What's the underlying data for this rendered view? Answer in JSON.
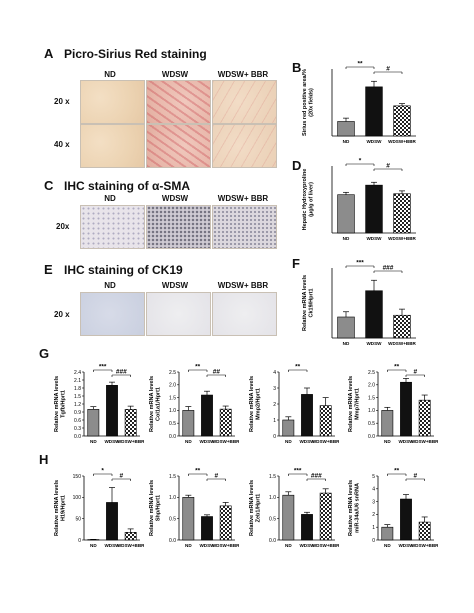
{
  "colors": {
    "nd": "#8c8c8c",
    "wdsw": "#111111",
    "bbr": "#ffffff",
    "tile_border": "#c9c0b4"
  },
  "panels": {
    "A": {
      "letter": "A",
      "title": "Picro-Sirius Red staining",
      "cols": [
        "ND",
        "WDSW",
        "WDSW+ BBR"
      ],
      "rows": [
        "20 x",
        "40 x"
      ]
    },
    "C": {
      "letter": "C",
      "title": "IHC staining of α-SMA",
      "cols": [
        "ND",
        "WDSW",
        "WDSW+ BBR"
      ],
      "rows": [
        "20x"
      ]
    },
    "E": {
      "letter": "E",
      "title": "IHC staining of CK19",
      "cols": [
        "ND",
        "WDSW",
        "WDSW+ BBR"
      ],
      "rows": [
        "20 x"
      ]
    },
    "B": {
      "letter": "B"
    },
    "D": {
      "letter": "D"
    },
    "F": {
      "letter": "F"
    },
    "G": {
      "letter": "G"
    },
    "H": {
      "letter": "H"
    }
  },
  "chart_data": [
    {
      "panel": "B",
      "type": "bar",
      "categories": [
        "ND",
        "WDSW",
        "WDSW+BBR"
      ],
      "ylabel": "Sirius  red positive area/%\n(20x fields)",
      "ylim": [
        0,
        3
      ],
      "yticks": [],
      "values": [
        0.65,
        2.2,
        1.35
      ],
      "errors": [
        0.15,
        0.25,
        0.1
      ],
      "sig": [
        {
          "from": 0,
          "to": 1,
          "label": "**"
        },
        {
          "from": 1,
          "to": 2,
          "label": "#"
        }
      ]
    },
    {
      "panel": "D",
      "type": "bar",
      "categories": [
        "ND",
        "WDSW",
        "WDSW+BBR"
      ],
      "ylabel": "Hepatic Hydroxyproline\n(μg/g of liver)",
      "ylim": [
        0,
        140
      ],
      "yticks": [],
      "values": [
        80,
        100,
        82
      ],
      "errors": [
        5,
        6,
        6
      ],
      "sig": [
        {
          "from": 0,
          "to": 1,
          "label": "*"
        },
        {
          "from": 1,
          "to": 2,
          "label": "#"
        }
      ]
    },
    {
      "panel": "F",
      "type": "bar",
      "categories": [
        "ND",
        "WDSW",
        "WDSW+BBR"
      ],
      "ylabel": "Relative mRNA levels\nCk19/Hprt1",
      "ylim": [
        0,
        4
      ],
      "yticks": [],
      "values": [
        1.2,
        2.7,
        1.3
      ],
      "errors": [
        0.3,
        0.6,
        0.35
      ],
      "sig": [
        {
          "from": 0,
          "to": 1,
          "label": "***"
        },
        {
          "from": 1,
          "to": 2,
          "label": "###"
        }
      ]
    },
    {
      "panel": "G1",
      "type": "bar",
      "categories": [
        "ND",
        "WDSW",
        "WDSW+BBR"
      ],
      "ylabel": "Relative mRNA levels\nTgfb/Hprt1",
      "ylim": [
        0,
        2.4
      ],
      "yticks": [
        "0.0",
        "0.3",
        "0.6",
        "0.9",
        "1.2",
        "1.5",
        "1.8",
        "2.1",
        "2.4"
      ],
      "values": [
        1.0,
        1.9,
        1.0
      ],
      "errors": [
        0.1,
        0.12,
        0.12
      ],
      "sig": [
        {
          "from": 0,
          "to": 1,
          "label": "***"
        },
        {
          "from": 1,
          "to": 2,
          "label": "###"
        }
      ]
    },
    {
      "panel": "G2",
      "type": "bar",
      "categories": [
        "ND",
        "WDSW",
        "WDSW+BBR"
      ],
      "ylabel": "Relative mRNA levels\nCol1a1/Hprt1",
      "ylim": [
        0,
        2.5
      ],
      "yticks": [
        "0.0",
        "0.5",
        "1.0",
        "1.5",
        "2.0",
        "2.5"
      ],
      "values": [
        1.0,
        1.6,
        1.05
      ],
      "errors": [
        0.15,
        0.15,
        0.12
      ],
      "sig": [
        {
          "from": 0,
          "to": 1,
          "label": "**"
        },
        {
          "from": 1,
          "to": 2,
          "label": "##"
        }
      ]
    },
    {
      "panel": "G3",
      "type": "bar",
      "categories": [
        "ND",
        "WDSW",
        "WDSW+BBR"
      ],
      "ylabel": "Relative mRNA levels\nMmp2/Hprt1",
      "ylim": [
        0,
        4
      ],
      "yticks": [
        "0",
        "1",
        "2",
        "3",
        "4"
      ],
      "values": [
        1.0,
        2.6,
        1.9
      ],
      "errors": [
        0.2,
        0.4,
        0.5
      ],
      "sig": [
        {
          "from": 0,
          "to": 1,
          "label": "**"
        }
      ]
    },
    {
      "panel": "G4",
      "type": "bar",
      "categories": [
        "ND",
        "WDSW",
        "WDSW+BBR"
      ],
      "ylabel": "Relative mRNA levels\nMmp7/Hprt1",
      "ylim": [
        0,
        2.5
      ],
      "yticks": [
        "0.0",
        "0.5",
        "1.0",
        "1.5",
        "2.0",
        "2.5"
      ],
      "values": [
        1.0,
        2.1,
        1.4
      ],
      "errors": [
        0.12,
        0.15,
        0.2
      ],
      "sig": [
        {
          "from": 0,
          "to": 1,
          "label": "**"
        },
        {
          "from": 1,
          "to": 2,
          "label": "#"
        }
      ]
    },
    {
      "panel": "H1",
      "type": "bar",
      "categories": [
        "ND",
        "WDSW",
        "WDSW+BBR"
      ],
      "ylabel": "Relative mRNA levels\nH19/Hprt1",
      "ylim": [
        0,
        150
      ],
      "yticks": [
        "0",
        "50",
        "100",
        "150"
      ],
      "values": [
        1,
        88,
        18
      ],
      "errors": [
        0.5,
        35,
        8
      ],
      "sig": [
        {
          "from": 0,
          "to": 1,
          "label": "*"
        },
        {
          "from": 1,
          "to": 2,
          "label": "#"
        }
      ]
    },
    {
      "panel": "H2",
      "type": "bar",
      "categories": [
        "ND",
        "WDSW",
        "WDSW+BBR"
      ],
      "ylabel": "Relative mRNA levels\nShp/Hprt1",
      "ylim": [
        0,
        1.5
      ],
      "yticks": [
        "0.0",
        "0.5",
        "1.0",
        "1.5"
      ],
      "values": [
        1.0,
        0.55,
        0.8
      ],
      "errors": [
        0.05,
        0.04,
        0.08
      ],
      "sig": [
        {
          "from": 0,
          "to": 1,
          "label": "**"
        },
        {
          "from": 1,
          "to": 2,
          "label": "#"
        }
      ]
    },
    {
      "panel": "H3",
      "type": "bar",
      "categories": [
        "ND",
        "WDSW",
        "WDSW+BBR"
      ],
      "ylabel": "Relative mRNA levels\nZeb1/Hprt1",
      "ylim": [
        0,
        1.5
      ],
      "yticks": [
        "0.0",
        "0.5",
        "1.0",
        "1.5"
      ],
      "values": [
        1.05,
        0.6,
        1.1
      ],
      "errors": [
        0.08,
        0.05,
        0.1
      ],
      "sig": [
        {
          "from": 0,
          "to": 1,
          "label": "***"
        },
        {
          "from": 1,
          "to": 2,
          "label": "###"
        }
      ]
    },
    {
      "panel": "H4",
      "type": "bar",
      "categories": [
        "ND",
        "WDSW",
        "WDSW+BBR"
      ],
      "ylabel": "Relative mRNA levels\nmiR-34a/U6 snRNA",
      "ylim": [
        0,
        5
      ],
      "yticks": [
        "0",
        "1",
        "2",
        "3",
        "4",
        "5"
      ],
      "values": [
        1.0,
        3.2,
        1.4
      ],
      "errors": [
        0.2,
        0.35,
        0.4
      ],
      "sig": [
        {
          "from": 0,
          "to": 1,
          "label": "**"
        },
        {
          "from": 1,
          "to": 2,
          "label": "#"
        }
      ]
    }
  ]
}
